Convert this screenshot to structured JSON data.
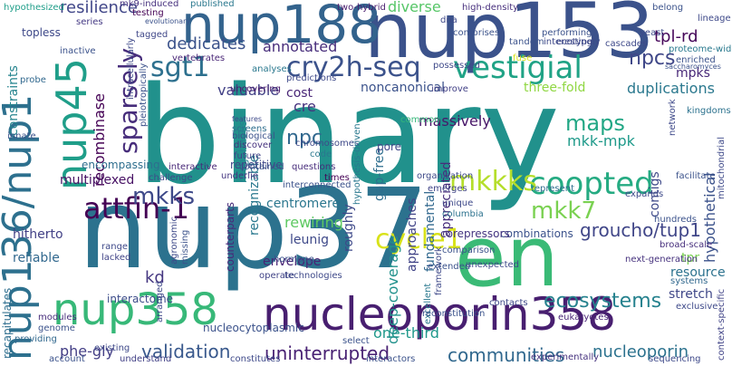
{
  "words": [
    {
      "text": "binary",
      "color": "#21918c"
    },
    {
      "text": "nup37",
      "color": "#2c728e"
    },
    {
      "text": "nup153",
      "color": "#3b528b"
    },
    {
      "text": "en",
      "color": "#3aba76"
    },
    {
      "text": "nucleoporin358",
      "color": "#481f70"
    },
    {
      "text": "nup136/nup1",
      "color": "#2d708e"
    },
    {
      "text": "nup188",
      "color": "#33638d"
    },
    {
      "text": "nup45",
      "color": "#1f9e89"
    },
    {
      "text": "nup358",
      "color": "#37b878"
    },
    {
      "text": "vestigial",
      "color": "#20a386"
    },
    {
      "text": "cry2h-seq",
      "color": "#3b528b"
    },
    {
      "text": "coopted",
      "color": "#25ab82"
    },
    {
      "text": "mkkks",
      "color": "#b5de2b"
    },
    {
      "text": "cycle1",
      "color": "#d8e219"
    },
    {
      "text": "attfin-1",
      "color": "#440154"
    },
    {
      "text": "mkks",
      "color": "#3e4989"
    },
    {
      "text": "sparsely",
      "color": "#472d7b"
    },
    {
      "text": "sgt1",
      "color": "#2d708e"
    },
    {
      "text": "npcs",
      "color": "#3f4788"
    },
    {
      "text": "mkk7",
      "color": "#7ad151"
    },
    {
      "text": "ecosystems",
      "color": "#26828e"
    },
    {
      "text": "communities",
      "color": "#31688e"
    },
    {
      "text": "uninterrupted",
      "color": "#482173"
    },
    {
      "text": "validation",
      "color": "#38588c"
    },
    {
      "text": "nucleoporin",
      "color": "#2c728e"
    },
    {
      "text": "groucho/tup1",
      "color": "#404688"
    },
    {
      "text": "kd",
      "color": "#453781"
    },
    {
      "text": "phe-gly",
      "color": "#433e85"
    },
    {
      "text": "maps",
      "color": "#22a785"
    },
    {
      "text": "recombinase",
      "color": "#440154"
    },
    {
      "text": "resilience",
      "color": "#404688"
    },
    {
      "text": "dedicates",
      "color": "#3b528b"
    },
    {
      "text": "diverse",
      "color": "#56c667"
    },
    {
      "text": "tpl-rd",
      "color": "#450559"
    },
    {
      "text": "annotated",
      "color": "#472d7b"
    },
    {
      "text": "valuable",
      "color": "#424186"
    },
    {
      "text": "npc",
      "color": "#31688e"
    },
    {
      "text": "cre",
      "color": "#46327e"
    },
    {
      "text": "cost",
      "color": "#482576"
    },
    {
      "text": "rewiring",
      "color": "#5ec962"
    },
    {
      "text": "leunig",
      "color": "#3e4989"
    },
    {
      "text": "centromere",
      "color": "#2a768e"
    },
    {
      "text": "hitherto",
      "color": "#424186"
    },
    {
      "text": "reliable",
      "color": "#31688e"
    },
    {
      "text": "multiplexed",
      "color": "#471164"
    },
    {
      "text": "encompassing",
      "color": "#2e6e8e"
    },
    {
      "text": "mkk-mpk",
      "color": "#1f9a8a"
    },
    {
      "text": "three-fold",
      "color": "#90d743"
    },
    {
      "text": "noncanonical",
      "color": "#3b528b"
    },
    {
      "text": "duplications",
      "color": "#2a788e"
    },
    {
      "text": "mpks",
      "color": "#482878"
    },
    {
      "text": "contigs",
      "color": "#3e4989"
    },
    {
      "text": "hypothetical",
      "color": "#3b528b"
    },
    {
      "text": "resource",
      "color": "#2c728e"
    },
    {
      "text": "stretch",
      "color": "#3f4788"
    },
    {
      "text": "tpr",
      "color": "#7ad151"
    },
    {
      "text": "one-third",
      "color": "#1f988b"
    },
    {
      "text": "deep-coverage",
      "color": "#21918c"
    },
    {
      "text": "approaches",
      "color": "#414487"
    },
    {
      "text": "roughly",
      "color": "#3e4989"
    },
    {
      "text": "fundamental",
      "color": "#31688e"
    },
    {
      "text": "appreciated",
      "color": "#472d7b"
    },
    {
      "text": "gap-free",
      "color": "#2e6e8e"
    },
    {
      "text": "recognizable",
      "color": "#2a788e"
    },
    {
      "text": "envelope",
      "color": "#482475"
    },
    {
      "text": "interactome",
      "color": "#3d4d8a"
    },
    {
      "text": "counterparts",
      "color": "#472a7a"
    },
    {
      "text": "megabases",
      "color": "#26828e"
    },
    {
      "text": "repetitive",
      "color": "#3f4788"
    },
    {
      "text": "combinations",
      "color": "#3b528b"
    },
    {
      "text": "corepressors",
      "color": "#453581"
    },
    {
      "text": "nucleocytoplasmic",
      "color": "#3b528b"
    },
    {
      "text": "recapitulates",
      "color": "#2e6e8e"
    },
    {
      "text": "constraints",
      "color": "#25848e"
    },
    {
      "text": "topless",
      "color": "#3e4989"
    },
    {
      "text": "hypothesized",
      "color": "#1f9e89"
    },
    {
      "text": "mk9-induced",
      "color": "#46307e"
    },
    {
      "text": "published",
      "color": "#2a788e"
    },
    {
      "text": "two-hybrid",
      "color": "#481b6d"
    },
    {
      "text": "high-density",
      "color": "#472f7d"
    },
    {
      "text": "interestingly",
      "color": "#3e4989"
    },
    {
      "text": "proteome-wide",
      "color": "#29798e"
    },
    {
      "text": "saccharomyces",
      "color": "#3b528b"
    },
    {
      "text": "kingdoms",
      "color": "#2c728e"
    },
    {
      "text": "vertebrates",
      "color": "#482576"
    },
    {
      "text": "predictions",
      "color": "#3e4989"
    },
    {
      "text": "tagged",
      "color": "#3f4788"
    },
    {
      "text": "series",
      "color": "#443983"
    },
    {
      "text": "testing",
      "color": "#440154"
    },
    {
      "text": "inactive",
      "color": "#3b528b"
    },
    {
      "text": "probe",
      "color": "#31688e"
    },
    {
      "text": "analyses",
      "color": "#2a788e"
    },
    {
      "text": "uncovering",
      "color": "#48186a"
    },
    {
      "text": "possessed",
      "color": "#3e4989"
    },
    {
      "text": "improve",
      "color": "#424186"
    },
    {
      "text": "massively",
      "color": "#481769"
    },
    {
      "text": "common",
      "color": "#35b779"
    },
    {
      "text": "screens",
      "color": "#2e6e8e"
    },
    {
      "text": "discover",
      "color": "#46327e"
    },
    {
      "text": "future",
      "color": "#414487"
    },
    {
      "text": "interactive",
      "color": "#482878"
    },
    {
      "text": "challenge",
      "color": "#3e4989"
    },
    {
      "text": "underlie",
      "color": "#453781"
    },
    {
      "text": "contained",
      "color": "#3b528b"
    },
    {
      "text": "questions",
      "color": "#472d7b"
    },
    {
      "text": "code",
      "color": "#2a788e"
    },
    {
      "text": "times",
      "color": "#440154"
    },
    {
      "text": "chromosomes",
      "color": "#3e4989"
    },
    {
      "text": "interconnected",
      "color": "#3b528b"
    },
    {
      "text": "pore",
      "color": "#3f4788"
    },
    {
      "text": "emerges",
      "color": "#414487"
    },
    {
      "text": "represent",
      "color": "#2e6e8e"
    },
    {
      "text": "expands",
      "color": "#3e4989"
    },
    {
      "text": "hundreds",
      "color": "#3b528b"
    },
    {
      "text": "broad-scale",
      "color": "#472f7d"
    },
    {
      "text": "exclusive",
      "color": "#3e4989"
    },
    {
      "text": "systems",
      "color": "#31688e"
    },
    {
      "text": "columbia",
      "color": "#2c728e"
    },
    {
      "text": "unique",
      "color": "#3e4989"
    },
    {
      "text": "comparison",
      "color": "#3b528b"
    },
    {
      "text": "unexpected",
      "color": "#3e4989"
    },
    {
      "text": "next-generation",
      "color": "#46327e"
    },
    {
      "text": "hormone",
      "color": "#3b528b"
    },
    {
      "text": "operate",
      "color": "#414487"
    },
    {
      "text": "technologies",
      "color": "#3e4989"
    },
    {
      "text": "excellent",
      "color": "#2a788e"
    },
    {
      "text": "reconstitution",
      "color": "#3b528b"
    },
    {
      "text": "contacts",
      "color": "#3e4989"
    },
    {
      "text": "eukaryotes",
      "color": "#482475"
    },
    {
      "text": "range",
      "color": "#3e4989"
    },
    {
      "text": "lacked",
      "color": "#414487"
    },
    {
      "text": "agronomic",
      "color": "#3e4989"
    },
    {
      "text": "missing",
      "color": "#3b528b"
    },
    {
      "text": "arranged",
      "color": "#3e4989"
    },
    {
      "text": "modules",
      "color": "#472d7b"
    },
    {
      "text": "genome",
      "color": "#3b528b"
    },
    {
      "text": "providing",
      "color": "#31688e"
    },
    {
      "text": "existing",
      "color": "#3e4989"
    },
    {
      "text": "account",
      "color": "#3b528b"
    },
    {
      "text": "understand",
      "color": "#424186"
    },
    {
      "text": "constitutes",
      "color": "#3e4989"
    },
    {
      "text": "interactors",
      "color": "#3b528b"
    },
    {
      "text": "experimentally",
      "color": "#46327e"
    },
    {
      "text": "sequencing",
      "color": "#3e4989"
    },
    {
      "text": "select",
      "color": "#3b528b"
    },
    {
      "text": "context-specific",
      "color": "#414487"
    },
    {
      "text": "mitochondrial",
      "color": "#3e4989"
    },
    {
      "text": "facilitate",
      "color": "#3b528b"
    },
    {
      "text": "framework",
      "color": "#3e4989"
    },
    {
      "text": "extended",
      "color": "#3b528b"
    },
    {
      "text": "hypothesis-driven",
      "color": "#2a788e"
    },
    {
      "text": "organization",
      "color": "#3e4989"
    },
    {
      "text": "pleiotropically",
      "color": "#3b528b"
    },
    {
      "text": "intracellularly",
      "color": "#3e4989"
    },
    {
      "text": "evolutionary",
      "color": "#3b528b"
    },
    {
      "text": "cascades",
      "color": "#3e4989"
    },
    {
      "text": "performing",
      "color": "#3b528b"
    },
    {
      "text": "ecotype",
      "color": "#3e4989"
    },
    {
      "text": "tandem",
      "color": "#3b528b"
    },
    {
      "text": "yeast",
      "color": "#3e4989"
    },
    {
      "text": "enriched",
      "color": "#3b528b"
    },
    {
      "text": "lineage",
      "color": "#3e4989"
    },
    {
      "text": "belong",
      "color": "#3b528b"
    },
    {
      "text": "dna",
      "color": "#3e4989"
    },
    {
      "text": "comprises",
      "color": "#3b528b"
    },
    {
      "text": "network",
      "color": "#3e4989"
    },
    {
      "text": "biological",
      "color": "#3b528b"
    },
    {
      "text": "features",
      "color": "#3e4989"
    },
    {
      "text": "innate",
      "color": "#3b528b"
    },
    {
      "text": "fuse",
      "color": "#d8e219"
    }
  ]
}
